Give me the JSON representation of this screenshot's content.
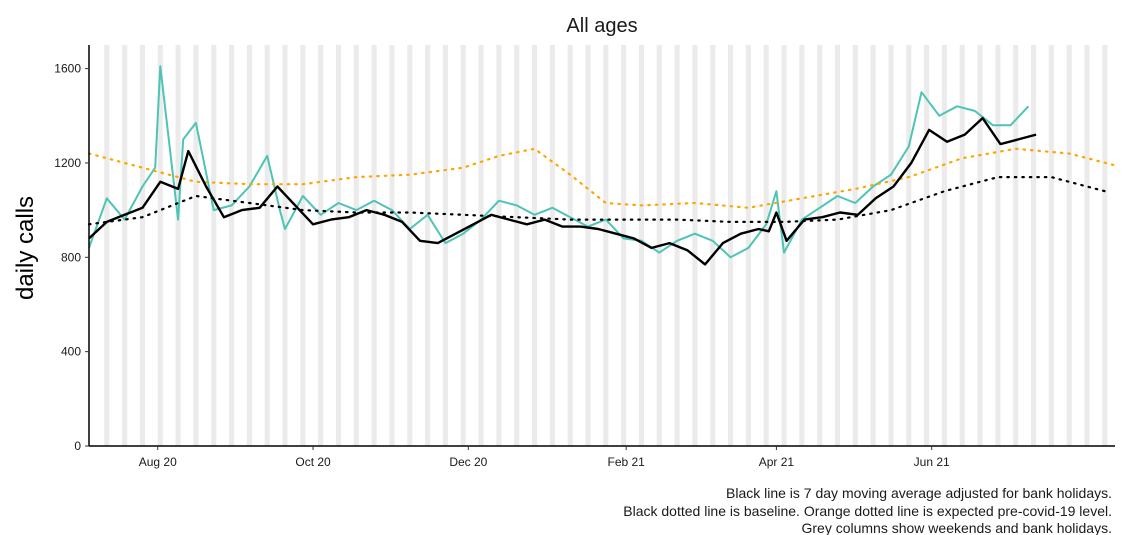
{
  "chart_data": {
    "type": "line",
    "title": "All ages",
    "xlabel": "",
    "ylabel": "daily calls",
    "ylim": [
      0,
      1700
    ],
    "x_range": [
      "2020-07-05",
      "2021-08-12"
    ],
    "x_ticks": [
      {
        "date": "2020-08-01",
        "label": "Aug 20"
      },
      {
        "date": "2020-10-01",
        "label": "Oct 20"
      },
      {
        "date": "2020-12-01",
        "label": "Dec 20"
      },
      {
        "date": "2021-02-01",
        "label": "Feb 21"
      },
      {
        "date": "2021-04-01",
        "label": "Apr 21"
      },
      {
        "date": "2021-06-01",
        "label": "Jun 21"
      }
    ],
    "y_ticks": [
      0,
      400,
      800,
      1200,
      1600
    ],
    "series": [
      {
        "name": "",
        "color": "#4dc4b6",
        "style": "solid",
        "x": [
          "2020-07-05",
          "2020-07-12",
          "2020-07-19",
          "2020-07-26",
          "2020-07-31",
          "2020-08-02",
          "2020-08-09",
          "2020-08-11",
          "2020-08-16",
          "2020-08-23",
          "2020-08-30",
          "2020-09-06",
          "2020-09-13",
          "2020-09-18",
          "2020-09-20",
          "2020-09-27",
          "2020-10-04",
          "2020-10-11",
          "2020-10-18",
          "2020-10-25",
          "2020-11-01",
          "2020-11-08",
          "2020-11-15",
          "2020-11-22",
          "2020-11-29",
          "2020-12-06",
          "2020-12-13",
          "2020-12-20",
          "2020-12-27",
          "2021-01-03",
          "2021-01-10",
          "2021-01-17",
          "2021-01-24",
          "2021-01-31",
          "2021-02-07",
          "2021-02-14",
          "2021-02-21",
          "2021-02-28",
          "2021-03-07",
          "2021-03-14",
          "2021-03-21",
          "2021-03-28",
          "2021-04-01",
          "2021-04-04",
          "2021-04-11",
          "2021-04-18",
          "2021-04-25",
          "2021-05-02",
          "2021-05-09",
          "2021-05-16",
          "2021-05-23",
          "2021-05-28",
          "2021-06-04",
          "2021-06-11",
          "2021-06-18",
          "2021-06-25",
          "2021-07-02",
          "2021-07-09"
        ],
        "y": [
          840,
          1050,
          960,
          1100,
          1180,
          1610,
          960,
          1300,
          1370,
          1000,
          1020,
          1100,
          1230,
          1000,
          920,
          1060,
          980,
          1030,
          1000,
          1040,
          1000,
          920,
          980,
          860,
          900,
          960,
          1040,
          1020,
          980,
          1010,
          970,
          930,
          960,
          880,
          870,
          820,
          870,
          900,
          870,
          800,
          840,
          940,
          1080,
          820,
          960,
          1010,
          1060,
          1030,
          1100,
          1150,
          1270,
          1500,
          1400,
          1440,
          1420,
          1360,
          1360,
          1440
        ]
      },
      {
        "name": "",
        "color": "#000000",
        "style": "solid",
        "x": [
          "2020-07-05",
          "2020-07-12",
          "2020-07-19",
          "2020-07-26",
          "2020-08-02",
          "2020-08-09",
          "2020-08-13",
          "2020-08-20",
          "2020-08-27",
          "2020-09-03",
          "2020-09-10",
          "2020-09-17",
          "2020-09-24",
          "2020-10-01",
          "2020-10-08",
          "2020-10-15",
          "2020-10-22",
          "2020-10-29",
          "2020-11-05",
          "2020-11-12",
          "2020-11-19",
          "2020-11-26",
          "2020-12-03",
          "2020-12-10",
          "2020-12-17",
          "2020-12-24",
          "2020-12-31",
          "2021-01-07",
          "2021-01-14",
          "2021-01-21",
          "2021-01-28",
          "2021-02-04",
          "2021-02-11",
          "2021-02-18",
          "2021-02-25",
          "2021-03-04",
          "2021-03-11",
          "2021-03-18",
          "2021-03-25",
          "2021-03-29",
          "2021-04-01",
          "2021-04-05",
          "2021-04-12",
          "2021-04-19",
          "2021-04-26",
          "2021-05-03",
          "2021-05-10",
          "2021-05-17",
          "2021-05-24",
          "2021-05-31",
          "2021-06-07",
          "2021-06-14",
          "2021-06-21",
          "2021-06-28",
          "2021-07-05",
          "2021-07-12"
        ],
        "y": [
          880,
          950,
          980,
          1010,
          1120,
          1090,
          1250,
          1100,
          970,
          1000,
          1010,
          1100,
          1020,
          940,
          960,
          970,
          1000,
          980,
          950,
          870,
          860,
          900,
          940,
          980,
          960,
          940,
          960,
          930,
          930,
          920,
          900,
          880,
          840,
          860,
          830,
          770,
          860,
          900,
          920,
          910,
          990,
          870,
          960,
          970,
          990,
          980,
          1050,
          1100,
          1200,
          1340,
          1290,
          1320,
          1390,
          1280,
          1300,
          1320
        ]
      },
      {
        "name": "",
        "color": "#000000",
        "style": "dotted",
        "x": [
          "2020-07-05",
          "2020-07-26",
          "2020-08-16",
          "2020-09-06",
          "2020-09-27",
          "2020-10-18",
          "2020-11-08",
          "2020-11-29",
          "2020-12-20",
          "2021-01-10",
          "2021-01-31",
          "2021-02-21",
          "2021-03-14",
          "2021-04-04",
          "2021-04-25",
          "2021-05-16",
          "2021-06-06",
          "2021-06-27",
          "2021-07-18",
          "2021-08-08"
        ],
        "y": [
          940,
          970,
          1060,
          1030,
          1000,
          990,
          990,
          980,
          970,
          960,
          960,
          960,
          950,
          950,
          960,
          1000,
          1080,
          1140,
          1140,
          1080
        ]
      },
      {
        "name": "",
        "color": "#ffa500",
        "style": "dotted",
        "x": [
          "2020-07-05",
          "2020-07-26",
          "2020-08-16",
          "2020-09-06",
          "2020-09-27",
          "2020-10-18",
          "2020-11-08",
          "2020-11-29",
          "2020-12-13",
          "2020-12-27",
          "2021-01-10",
          "2021-01-24",
          "2021-02-07",
          "2021-02-28",
          "2021-03-21",
          "2021-04-11",
          "2021-05-02",
          "2021-05-23",
          "2021-06-13",
          "2021-07-04",
          "2021-07-25",
          "2021-08-12"
        ],
        "y": [
          1240,
          1180,
          1120,
          1110,
          1110,
          1140,
          1150,
          1180,
          1230,
          1260,
          1150,
          1030,
          1020,
          1030,
          1010,
          1050,
          1090,
          1140,
          1220,
          1260,
          1240,
          1190
        ]
      }
    ],
    "grey_columns_note": "weekends and bank holidays",
    "grid": false,
    "legend": "none",
    "captions": [
      "Black line is 7 day moving average adjusted for bank holidays.",
      "Black dotted line is baseline. Orange dotted line is expected pre-covid-19 level.",
      "Grey columns show weekends and bank holidays."
    ]
  }
}
